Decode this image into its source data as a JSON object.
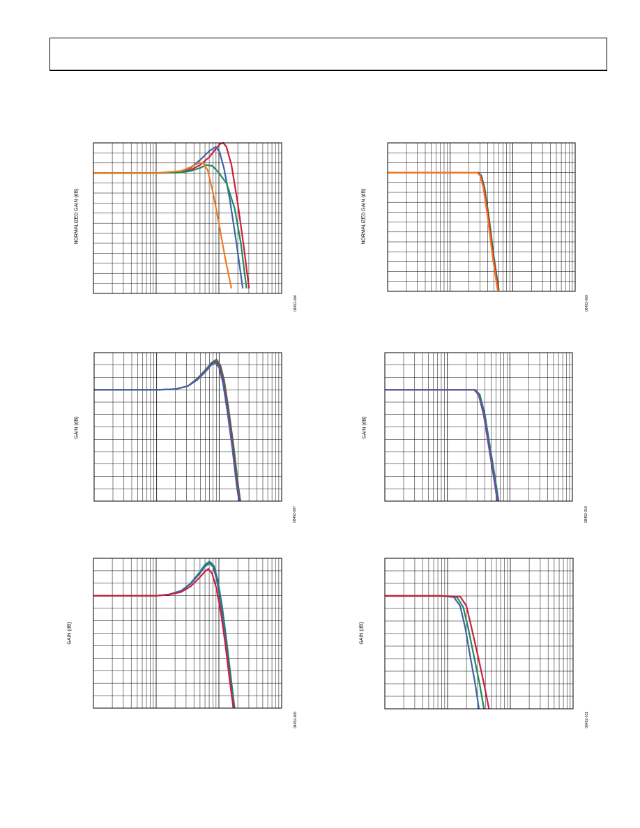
{
  "page": {
    "header_box": ""
  },
  "chart_data": [
    {
      "id": "upper-left",
      "type": "line",
      "scale": "log-x",
      "grid": true,
      "ylabel": "NORMALIZED GAIN (dB)",
      "figure_code": "08452-006",
      "x_decades": 3,
      "ylim": [
        -12,
        3
      ],
      "series": [
        {
          "color": "#cc1f3f",
          "points": [
            [
              0,
              0
            ],
            [
              0.5,
              0
            ],
            [
              1,
              0
            ],
            [
              1.4,
              0.05
            ],
            [
              1.55,
              0.3
            ],
            [
              1.7,
              0.8
            ],
            [
              1.85,
              1.6
            ],
            [
              1.95,
              2.4
            ],
            [
              2.02,
              2.9
            ],
            [
              2.07,
              3.0
            ],
            [
              2.12,
              2.6
            ],
            [
              2.2,
              0.8
            ],
            [
              2.3,
              -3
            ],
            [
              2.4,
              -7.5
            ],
            [
              2.48,
              -11.5
            ]
          ]
        },
        {
          "color": "#3d64a8",
          "points": [
            [
              0,
              0
            ],
            [
              0.5,
              0
            ],
            [
              1,
              0
            ],
            [
              1.4,
              0.1
            ],
            [
              1.55,
              0.5
            ],
            [
              1.7,
              1.3
            ],
            [
              1.85,
              2.2
            ],
            [
              1.95,
              2.6
            ],
            [
              2.01,
              2.1
            ],
            [
              2.08,
              0.5
            ],
            [
              2.17,
              -2.5
            ],
            [
              2.28,
              -7
            ],
            [
              2.38,
              -11.5
            ]
          ]
        },
        {
          "color": "#1f8a5a",
          "points": [
            [
              0,
              0
            ],
            [
              0.5,
              0
            ],
            [
              1,
              0
            ],
            [
              1.4,
              0.05
            ],
            [
              1.55,
              0.2
            ],
            [
              1.7,
              0.5
            ],
            [
              1.8,
              0.8
            ],
            [
              1.9,
              0.7
            ],
            [
              2,
              0
            ],
            [
              2.12,
              -1
            ],
            [
              2.25,
              -3.5
            ],
            [
              2.35,
              -7
            ],
            [
              2.44,
              -11.5
            ]
          ]
        },
        {
          "color": "#f07a20",
          "points": [
            [
              0,
              0
            ],
            [
              0.5,
              0
            ],
            [
              1,
              0
            ],
            [
              1.4,
              0.2
            ],
            [
              1.55,
              0.6
            ],
            [
              1.68,
              1.0
            ],
            [
              1.75,
              1.0
            ],
            [
              1.82,
              0.3
            ],
            [
              1.9,
              -1.8
            ],
            [
              2,
              -5
            ],
            [
              2.1,
              -8.5
            ],
            [
              2.2,
              -11.5
            ]
          ]
        }
      ]
    },
    {
      "id": "upper-right",
      "type": "line",
      "scale": "log-x",
      "grid": true,
      "ylabel": "NORMALIZED GAIN (dB)",
      "figure_code": "08452-009",
      "x_decades": 3,
      "ylim": [
        -12,
        3
      ],
      "series": [
        {
          "color": "#1f8a5a",
          "points": [
            [
              0,
              0
            ],
            [
              0.5,
              0
            ],
            [
              1,
              0
            ],
            [
              1.3,
              0
            ],
            [
              1.45,
              0
            ],
            [
              1.5,
              -0.3
            ],
            [
              1.55,
              -1.5
            ],
            [
              1.62,
              -4.5
            ],
            [
              1.7,
              -8.5
            ],
            [
              1.78,
              -11.9
            ]
          ]
        },
        {
          "color": "#cc1f3f",
          "points": [
            [
              0,
              0
            ],
            [
              0.5,
              0
            ],
            [
              1,
              0
            ],
            [
              1.3,
              0
            ],
            [
              1.44,
              0
            ],
            [
              1.49,
              -0.3
            ],
            [
              1.54,
              -1.5
            ],
            [
              1.61,
              -4.5
            ],
            [
              1.69,
              -8.5
            ],
            [
              1.77,
              -11.9
            ]
          ]
        },
        {
          "color": "#f07a20",
          "points": [
            [
              0,
              0
            ],
            [
              0.5,
              0
            ],
            [
              1,
              0
            ],
            [
              1.3,
              0
            ],
            [
              1.43,
              0
            ],
            [
              1.48,
              -0.3
            ],
            [
              1.53,
              -1.5
            ],
            [
              1.6,
              -4.5
            ],
            [
              1.68,
              -8.5
            ],
            [
              1.76,
              -11.9
            ]
          ]
        }
      ]
    },
    {
      "id": "middle-left",
      "type": "line",
      "scale": "log-x",
      "grid": true,
      "ylabel": "GAIN (dB)",
      "figure_code": "08452-007",
      "x_decades": 3,
      "ylim": [
        -9,
        3
      ],
      "series": [
        {
          "color": "#1f8a5a",
          "points": [
            [
              0,
              0
            ],
            [
              0.5,
              0
            ],
            [
              1,
              0
            ],
            [
              1.3,
              0.05
            ],
            [
              1.5,
              0.3
            ],
            [
              1.65,
              0.9
            ],
            [
              1.78,
              1.6
            ],
            [
              1.88,
              2.2
            ],
            [
              1.96,
              2.45
            ],
            [
              2.02,
              2
            ],
            [
              2.08,
              0.8
            ],
            [
              2.15,
              -1.5
            ],
            [
              2.23,
              -4.5
            ],
            [
              2.3,
              -7.5
            ],
            [
              2.34,
              -9
            ]
          ]
        },
        {
          "color": "#cc1f3f",
          "points": [
            [
              0,
              0
            ],
            [
              0.5,
              0
            ],
            [
              1,
              0
            ],
            [
              1.3,
              0.05
            ],
            [
              1.5,
              0.3
            ],
            [
              1.65,
              0.85
            ],
            [
              1.78,
              1.5
            ],
            [
              1.88,
              2.1
            ],
            [
              1.95,
              2.3
            ],
            [
              2.01,
              1.9
            ],
            [
              2.07,
              0.7
            ],
            [
              2.14,
              -1.6
            ],
            [
              2.22,
              -4.6
            ],
            [
              2.29,
              -7.6
            ],
            [
              2.33,
              -9
            ]
          ]
        },
        {
          "color": "#3d64a8",
          "points": [
            [
              0,
              0
            ],
            [
              0.5,
              0
            ],
            [
              1,
              0
            ],
            [
              1.3,
              0.05
            ],
            [
              1.5,
              0.3
            ],
            [
              1.65,
              0.8
            ],
            [
              1.78,
              1.45
            ],
            [
              1.88,
              2.05
            ],
            [
              1.94,
              2.2
            ],
            [
              2,
              1.8
            ],
            [
              2.06,
              0.6
            ],
            [
              2.13,
              -1.7
            ],
            [
              2.21,
              -4.7
            ],
            [
              2.28,
              -7.7
            ],
            [
              2.32,
              -9
            ]
          ]
        }
      ]
    },
    {
      "id": "middle-right",
      "type": "line",
      "scale": "log-x",
      "grid": true,
      "ylabel": "GAIN (dB)",
      "figure_code": "08452-010",
      "x_decades": 3,
      "ylim": [
        -9,
        3
      ],
      "series": [
        {
          "color": "#1f8a5a",
          "points": [
            [
              0,
              0
            ],
            [
              0.5,
              0
            ],
            [
              1,
              0
            ],
            [
              1.3,
              0
            ],
            [
              1.45,
              0
            ],
            [
              1.52,
              -0.4
            ],
            [
              1.6,
              -2
            ],
            [
              1.68,
              -4.5
            ],
            [
              1.76,
              -7
            ],
            [
              1.82,
              -9
            ]
          ]
        },
        {
          "color": "#3d64a8",
          "points": [
            [
              0,
              0
            ],
            [
              0.5,
              0
            ],
            [
              1,
              0
            ],
            [
              1.3,
              0
            ],
            [
              1.44,
              0
            ],
            [
              1.51,
              -0.4
            ],
            [
              1.59,
              -2
            ],
            [
              1.67,
              -4.5
            ],
            [
              1.75,
              -7
            ],
            [
              1.81,
              -9
            ]
          ]
        },
        {
          "color": "#6b4f9a",
          "points": [
            [
              0,
              0
            ],
            [
              0.5,
              0
            ],
            [
              1,
              0
            ],
            [
              1.3,
              0
            ],
            [
              1.43,
              0
            ],
            [
              1.5,
              -0.4
            ],
            [
              1.58,
              -2
            ],
            [
              1.66,
              -4.5
            ],
            [
              1.74,
              -7
            ],
            [
              1.8,
              -9
            ]
          ]
        }
      ]
    },
    {
      "id": "lower-left",
      "type": "line",
      "scale": "log-x",
      "grid": true,
      "ylabel": "GAIN (dB)",
      "figure_code": "08452-008",
      "x_decades": 3,
      "ylim": [
        -9,
        3
      ],
      "series": [
        {
          "color": "#1f8a5a",
          "points": [
            [
              0,
              0
            ],
            [
              0.5,
              0
            ],
            [
              1,
              0
            ],
            [
              1.2,
              0.1
            ],
            [
              1.4,
              0.4
            ],
            [
              1.55,
              1
            ],
            [
              1.68,
              1.8
            ],
            [
              1.78,
              2.5
            ],
            [
              1.85,
              2.75
            ],
            [
              1.92,
              2.4
            ],
            [
              1.98,
              1.3
            ],
            [
              2.05,
              -0.8
            ],
            [
              2.12,
              -3.5
            ],
            [
              2.19,
              -6.5
            ],
            [
              2.25,
              -9
            ]
          ]
        },
        {
          "color": "#3d64a8",
          "points": [
            [
              0,
              0
            ],
            [
              0.5,
              0
            ],
            [
              1,
              0
            ],
            [
              1.2,
              0.1
            ],
            [
              1.4,
              0.4
            ],
            [
              1.55,
              0.95
            ],
            [
              1.68,
              1.7
            ],
            [
              1.78,
              2.35
            ],
            [
              1.85,
              2.6
            ],
            [
              1.91,
              2.3
            ],
            [
              1.97,
              1.2
            ],
            [
              2.04,
              -0.9
            ],
            [
              2.11,
              -3.6
            ],
            [
              2.18,
              -6.6
            ],
            [
              2.24,
              -9
            ]
          ]
        },
        {
          "color": "#cc1f3f",
          "points": [
            [
              0,
              0
            ],
            [
              0.5,
              0
            ],
            [
              1,
              0
            ],
            [
              1.2,
              0.08
            ],
            [
              1.4,
              0.3
            ],
            [
              1.55,
              0.75
            ],
            [
              1.68,
              1.4
            ],
            [
              1.78,
              1.95
            ],
            [
              1.83,
              2.15
            ],
            [
              1.89,
              1.8
            ],
            [
              1.96,
              0.6
            ],
            [
              2.03,
              -1.3
            ],
            [
              2.1,
              -3.8
            ],
            [
              2.17,
              -6.7
            ],
            [
              2.23,
              -9
            ]
          ]
        }
      ]
    },
    {
      "id": "lower-right",
      "type": "line",
      "scale": "log-x",
      "grid": true,
      "ylabel": "GAIN (dB)",
      "figure_code": "08452-011",
      "x_decades": 3,
      "ylim": [
        -9,
        3
      ],
      "series": [
        {
          "color": "#3d64a8",
          "points": [
            [
              0,
              0
            ],
            [
              0.5,
              0
            ],
            [
              0.9,
              0
            ],
            [
              1.1,
              -0.1
            ],
            [
              1.2,
              -0.8
            ],
            [
              1.28,
              -2.5
            ],
            [
              1.36,
              -4.8
            ],
            [
              1.44,
              -7
            ],
            [
              1.5,
              -9
            ]
          ]
        },
        {
          "color": "#1f8a5a",
          "points": [
            [
              0,
              0
            ],
            [
              0.5,
              0
            ],
            [
              0.9,
              0
            ],
            [
              1.15,
              -0.1
            ],
            [
              1.25,
              -0.9
            ],
            [
              1.33,
              -2.6
            ],
            [
              1.42,
              -4.8
            ],
            [
              1.51,
              -7
            ],
            [
              1.58,
              -9
            ]
          ]
        },
        {
          "color": "#cc1f3f",
          "points": [
            [
              0,
              0
            ],
            [
              0.5,
              0
            ],
            [
              0.9,
              0
            ],
            [
              1.2,
              -0.05
            ],
            [
              1.3,
              -0.8
            ],
            [
              1.38,
              -2.5
            ],
            [
              1.48,
              -4.7
            ],
            [
              1.58,
              -7
            ],
            [
              1.66,
              -9
            ]
          ]
        }
      ]
    }
  ]
}
